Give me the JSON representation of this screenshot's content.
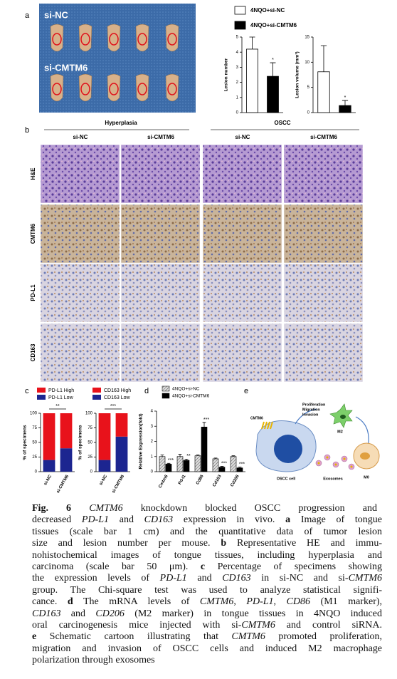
{
  "panel_labels": [
    "a",
    "b",
    "c",
    "d",
    "e"
  ],
  "panel_a": {
    "photo_labels": [
      "si-NC",
      "si-CMTM6"
    ]
  },
  "panel_b": {
    "groups": [
      "Hyperplasia",
      "OSCC"
    ],
    "columns": [
      "si-NC",
      "si-CMTM6",
      "si-NC",
      "si-CMTM6"
    ],
    "rows": [
      "H&E",
      "CMTM6",
      "PD-L1",
      "CD163"
    ]
  },
  "chart_data": [
    {
      "type": "bar",
      "ylabel": "Lesion number",
      "ylim": [
        0,
        5
      ],
      "yticks": [
        0,
        1,
        2,
        3,
        4,
        5
      ],
      "series": [
        {
          "name": "4NQO+si-NC",
          "color": "#ffffff",
          "values": [
            4.2
          ],
          "errors": [
            0.8
          ]
        },
        {
          "name": "4NQO+si-CMTM6",
          "color": "#000000",
          "values": [
            2.4
          ],
          "errors": [
            0.9
          ],
          "annotations": [
            "*"
          ]
        }
      ]
    },
    {
      "type": "bar",
      "ylabel": "Lesion volume (mm³)",
      "ylim": [
        0,
        15
      ],
      "yticks": [
        0,
        5,
        10,
        15
      ],
      "series": [
        {
          "color": "#ffffff",
          "values": [
            8.1
          ],
          "errors": [
            5.2
          ]
        },
        {
          "color": "#000000",
          "values": [
            1.4
          ],
          "errors": [
            1.0
          ],
          "annotations": [
            "*"
          ]
        }
      ]
    },
    {
      "type": "stacked_bar",
      "ylabel": "% of specimens",
      "ylim": [
        0,
        100
      ],
      "yticks": [
        0,
        25,
        50,
        75,
        100
      ],
      "categories": [
        "si-NC",
        "si-CMTM6"
      ],
      "significance": "**",
      "series": [
        {
          "name": "PD-L1 Low",
          "color": "#1c2590",
          "values": [
            20,
            40
          ]
        },
        {
          "name": "PD-L1 High",
          "color": "#e8121b",
          "values": [
            80,
            60
          ]
        }
      ]
    },
    {
      "type": "stacked_bar",
      "ylabel": "% of specimens",
      "ylim": [
        0,
        100
      ],
      "yticks": [
        0,
        25,
        50,
        75,
        100
      ],
      "categories": [
        "si-NC",
        "si-CMTM6"
      ],
      "significance": "***",
      "series": [
        {
          "name": "CD163 Low",
          "color": "#1c2590",
          "values": [
            20,
            60
          ]
        },
        {
          "name": "CD163 High",
          "color": "#e8121b",
          "values": [
            80,
            40
          ]
        }
      ]
    },
    {
      "type": "grouped_bar",
      "ylabel": "Relative Expression(fold)",
      "ylim": [
        0,
        4
      ],
      "yticks": [
        0,
        1,
        2,
        3,
        4
      ],
      "categories": [
        "Cmtm6",
        "Pd-l1",
        "Cd86",
        "Cd163",
        "Cd206"
      ],
      "series": [
        {
          "name": "4NQO+si-NC",
          "color": "#b0b0b0",
          "pattern": "hatch",
          "values": [
            1.0,
            1.0,
            1.05,
            0.85,
            1.0
          ],
          "errors": [
            0.1,
            0.15,
            0.05,
            0.05,
            0.05
          ]
        },
        {
          "name": "4NQO+si-CMTM6",
          "color": "#000000",
          "values": [
            0.5,
            0.75,
            2.95,
            0.3,
            0.25
          ],
          "errors": [
            0.05,
            0.08,
            0.3,
            0.05,
            0.05
          ],
          "annotations": [
            "***",
            "**",
            "***",
            "***",
            "***"
          ]
        }
      ]
    }
  ],
  "panel_e": {
    "cmtm6": "CMTM6",
    "effects": [
      "Proliferation",
      "Migration",
      "Invasion"
    ],
    "m2": "M2",
    "oscc_cell": "OSCC cell",
    "exosomes": "Exosomes",
    "m0": "M0"
  },
  "caption": [
    [
      {
        "text": "Fig. 6",
        "style": "bold"
      },
      {
        "text": " "
      },
      {
        "text": "CMTM6",
        "style": "italic"
      },
      {
        "text": " knockdown blocked OSCC progression and"
      }
    ],
    [
      {
        "text": "decreased "
      },
      {
        "text": "PD-L1",
        "style": "italic"
      },
      {
        "text": " and "
      },
      {
        "text": "CD163",
        "style": "italic"
      },
      {
        "text": " expression in vivo. "
      },
      {
        "text": "a",
        "style": "bold"
      },
      {
        "text": " Image of tongue"
      }
    ],
    [
      {
        "text": "tissues (scale bar 1 cm) and the quantitative data of tumor lesion"
      }
    ],
    [
      {
        "text": "size and lesion number per mouse. "
      },
      {
        "text": "b",
        "style": "bold"
      },
      {
        "text": " Representative HE and immu-"
      }
    ],
    [
      {
        "text": "nohistochemical images of tongue tissues, including hyperplasia and"
      }
    ],
    [
      {
        "text": "carcinoma (scale bar 50 μm). "
      },
      {
        "text": "c",
        "style": "bold"
      },
      {
        "text": " Percentage of specimens showing"
      }
    ],
    [
      {
        "text": "the expression levels of "
      },
      {
        "text": "PD-L1",
        "style": "italic"
      },
      {
        "text": " and "
      },
      {
        "text": "CD163",
        "style": "italic"
      },
      {
        "text": " in si-NC and si-"
      },
      {
        "text": "CMTM6",
        "style": "italic"
      }
    ],
    [
      {
        "text": "group. The Chi-square test was used to analyze statistical signifi-"
      }
    ],
    [
      {
        "text": "cance. "
      },
      {
        "text": "d",
        "style": "bold"
      },
      {
        "text": " The mRNA levels of "
      },
      {
        "text": "CMTM6",
        "style": "italic"
      },
      {
        "text": ", "
      },
      {
        "text": "PD-L1",
        "style": "italic"
      },
      {
        "text": ", "
      },
      {
        "text": "CD86",
        "style": "italic"
      },
      {
        "text": " (M1 marker),"
      }
    ],
    [
      {
        "text": "CD163",
        "style": "italic"
      },
      {
        "text": " and "
      },
      {
        "text": "CD206",
        "style": "italic"
      },
      {
        "text": " (M2 marker) in tongue tissues in 4NQO induced"
      }
    ],
    [
      {
        "text": "oral carcinogenesis mice injected with si-"
      },
      {
        "text": "CMTM6",
        "style": "italic"
      },
      {
        "text": " and control siRNA."
      }
    ],
    [
      {
        "text": "e",
        "style": "bold"
      },
      {
        "text": " Schematic cartoon illustrating that "
      },
      {
        "text": "CMTM6",
        "style": "italic"
      },
      {
        "text": " promoted proliferation,"
      }
    ],
    [
      {
        "text": "migration and invasion of OSCC cells and induced M2 macrophage"
      }
    ],
    [
      {
        "text": "polarization through exosomes"
      }
    ]
  ]
}
